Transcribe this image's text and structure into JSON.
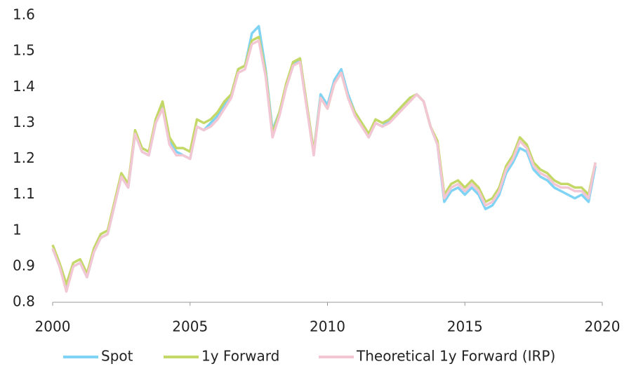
{
  "chart_data": {
    "type": "line",
    "x": [
      2000,
      2000.25,
      2000.5,
      2000.75,
      2001,
      2001.25,
      2001.5,
      2001.75,
      2002,
      2002.25,
      2002.5,
      2002.75,
      2003,
      2003.25,
      2003.5,
      2003.75,
      2004,
      2004.25,
      2004.5,
      2004.75,
      2005,
      2005.25,
      2005.5,
      2005.75,
      2006,
      2006.25,
      2006.5,
      2006.75,
      2007,
      2007.25,
      2007.5,
      2007.75,
      2008,
      2008.25,
      2008.5,
      2008.75,
      2009,
      2009.25,
      2009.5,
      2009.75,
      2010,
      2010.25,
      2010.5,
      2010.75,
      2011,
      2011.25,
      2011.5,
      2011.75,
      2012,
      2012.25,
      2012.5,
      2012.75,
      2013,
      2013.25,
      2013.5,
      2013.75,
      2014,
      2014.25,
      2014.5,
      2014.75,
      2015,
      2015.25,
      2015.5,
      2015.75,
      2016,
      2016.25,
      2016.5,
      2016.75,
      2017,
      2017.25,
      2017.5,
      2017.75,
      2018,
      2018.25,
      2018.5,
      2018.75,
      2019,
      2019.25,
      2019.5,
      2019.75
    ],
    "series": [
      {
        "name": "Spot",
        "color": "#7fd3f4",
        "values": [
          0.95,
          0.9,
          0.84,
          0.9,
          0.91,
          0.87,
          0.94,
          0.98,
          0.99,
          1.07,
          1.15,
          1.12,
          1.27,
          1.22,
          1.21,
          1.3,
          1.35,
          1.25,
          1.22,
          1.21,
          1.2,
          1.29,
          1.28,
          1.3,
          1.32,
          1.35,
          1.38,
          1.45,
          1.46,
          1.55,
          1.57,
          1.45,
          1.28,
          1.33,
          1.4,
          1.46,
          1.48,
          1.35,
          1.22,
          1.38,
          1.35,
          1.42,
          1.45,
          1.38,
          1.33,
          1.3,
          1.26,
          1.3,
          1.29,
          1.31,
          1.33,
          1.35,
          1.37,
          1.38,
          1.36,
          1.29,
          1.24,
          1.08,
          1.11,
          1.12,
          1.1,
          1.12,
          1.1,
          1.06,
          1.07,
          1.1,
          1.16,
          1.19,
          1.23,
          1.22,
          1.17,
          1.15,
          1.14,
          1.12,
          1.11,
          1.1,
          1.09,
          1.1,
          1.08,
          1.18
        ]
      },
      {
        "name": "1y Forward",
        "color": "#c4d867",
        "values": [
          0.96,
          0.91,
          0.85,
          0.91,
          0.92,
          0.88,
          0.95,
          0.99,
          1.0,
          1.08,
          1.16,
          1.13,
          1.28,
          1.23,
          1.22,
          1.31,
          1.36,
          1.26,
          1.23,
          1.23,
          1.22,
          1.31,
          1.3,
          1.31,
          1.33,
          1.36,
          1.38,
          1.45,
          1.46,
          1.53,
          1.54,
          1.44,
          1.27,
          1.33,
          1.41,
          1.47,
          1.48,
          1.35,
          1.22,
          1.37,
          1.34,
          1.41,
          1.44,
          1.37,
          1.33,
          1.3,
          1.27,
          1.31,
          1.3,
          1.31,
          1.33,
          1.35,
          1.37,
          1.38,
          1.36,
          1.29,
          1.25,
          1.1,
          1.13,
          1.14,
          1.12,
          1.14,
          1.12,
          1.08,
          1.09,
          1.12,
          1.18,
          1.21,
          1.26,
          1.24,
          1.19,
          1.17,
          1.16,
          1.14,
          1.13,
          1.13,
          1.12,
          1.12,
          1.1,
          1.19
        ]
      },
      {
        "name": "Theoretical 1y Forward (IRP)",
        "color": "#f3c6d3",
        "values": [
          0.95,
          0.9,
          0.83,
          0.9,
          0.91,
          0.87,
          0.94,
          0.98,
          0.99,
          1.07,
          1.15,
          1.12,
          1.27,
          1.22,
          1.21,
          1.3,
          1.34,
          1.24,
          1.21,
          1.21,
          1.2,
          1.29,
          1.28,
          1.29,
          1.31,
          1.34,
          1.37,
          1.44,
          1.45,
          1.52,
          1.53,
          1.43,
          1.26,
          1.32,
          1.4,
          1.46,
          1.47,
          1.34,
          1.21,
          1.37,
          1.34,
          1.41,
          1.44,
          1.37,
          1.32,
          1.29,
          1.26,
          1.3,
          1.29,
          1.3,
          1.32,
          1.34,
          1.36,
          1.38,
          1.36,
          1.29,
          1.24,
          1.09,
          1.12,
          1.13,
          1.11,
          1.13,
          1.11,
          1.07,
          1.08,
          1.11,
          1.17,
          1.2,
          1.25,
          1.23,
          1.18,
          1.16,
          1.15,
          1.13,
          1.12,
          1.12,
          1.11,
          1.11,
          1.09,
          1.19
        ]
      }
    ],
    "xlim": [
      2000,
      2020
    ],
    "xticks": [
      2000,
      2005,
      2010,
      2015,
      2020
    ],
    "ylim": [
      0.8,
      1.6
    ],
    "yticks": [
      0.8,
      0.9,
      1,
      1.1,
      1.2,
      1.3,
      1.4,
      1.5,
      1.6
    ],
    "grid": false,
    "legend": "bottom"
  }
}
